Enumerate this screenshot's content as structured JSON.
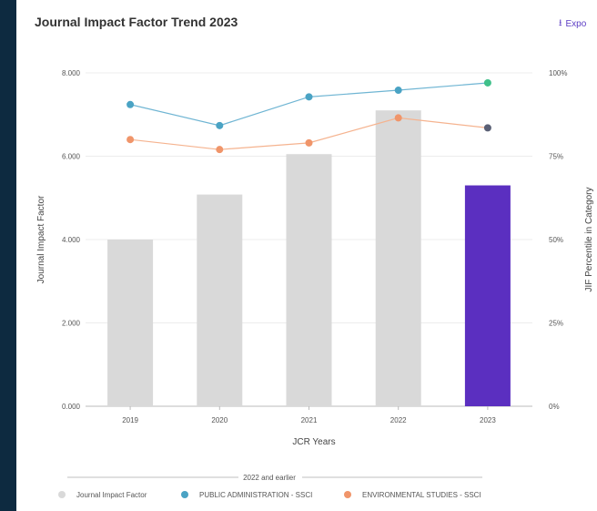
{
  "header": {
    "title": "Journal Impact Factor Trend 2023",
    "export_label": "Expo",
    "export_icon": "download-icon"
  },
  "chart_data": {
    "type": "bar",
    "categories": [
      "2019",
      "2020",
      "2021",
      "2022",
      "2023"
    ],
    "xlabel": "JCR Years",
    "ylabel": "Journal Impact Factor",
    "y2label": "JIF Percentile in Category",
    "ylim": [
      0,
      8
    ],
    "y2lim": [
      0,
      100
    ],
    "yticks": [
      "0.000",
      "2.000",
      "4.000",
      "6.000",
      "8.000"
    ],
    "y2ticks": [
      "0%",
      "25%",
      "50%",
      "75%",
      "100%"
    ],
    "bars": {
      "name": "Journal Impact Factor",
      "values": [
        4.0,
        5.08,
        6.05,
        7.1,
        5.3
      ],
      "color": "#d9d9d9",
      "highlight_color": "#5b2fc0",
      "highlight_index": 4
    },
    "series": [
      {
        "name": "PUBLIC ADMINISTRATION - SSCI",
        "axis": "right",
        "values": [
          90.5,
          84.2,
          92.8,
          94.8,
          97.0
        ],
        "color": "#6fb5d3",
        "marker_color": "#4aa3c4",
        "last_marker_color": "#3fc08a"
      },
      {
        "name": "ENVIRONMENTAL STUDIES - SSCI",
        "axis": "right",
        "values": [
          80.0,
          77.0,
          79.0,
          86.5,
          83.5
        ],
        "color": "#f5b38f",
        "marker_color": "#f0956a",
        "last_marker_color": "#5a6075"
      }
    ],
    "legend": {
      "placement": "bottom",
      "group_label": "2022 and earlier",
      "items": [
        {
          "label": "Journal Impact Factor",
          "color": "#d9d9d9"
        },
        {
          "label": "PUBLIC ADMINISTRATION - SSCI",
          "color": "#4aa3c4"
        },
        {
          "label": "ENVIRONMENTAL STUDIES - SSCI",
          "color": "#f0956a"
        }
      ]
    },
    "grid": true
  }
}
